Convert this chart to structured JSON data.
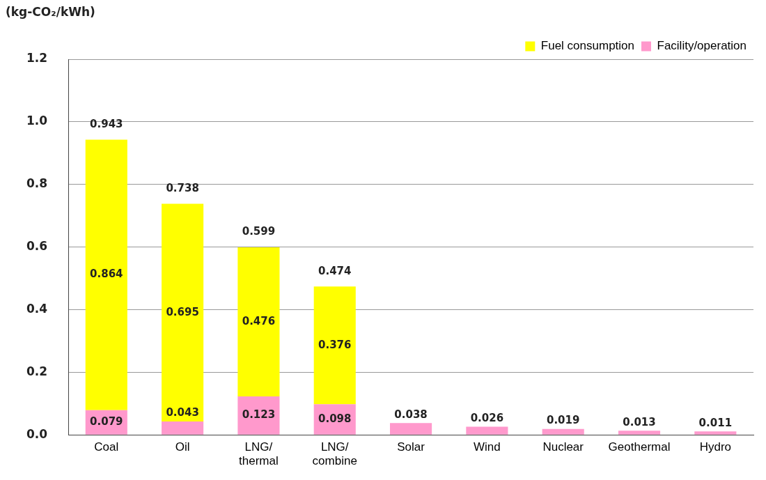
{
  "chart_data": {
    "type": "bar",
    "ylabel": "(kg-CO₂/kWh)",
    "categories": [
      "Coal",
      "Oil",
      "LNG/thermal",
      "LNG/combine",
      "Solar",
      "Wind",
      "Nuclear",
      "Geothermal",
      "Hydro"
    ],
    "stacked": true,
    "series": [
      {
        "name": "Facility/operation",
        "color": "#ff99cc",
        "values": [
          0.079,
          0.043,
          0.123,
          0.098,
          0.038,
          0.026,
          0.019,
          0.013,
          0.011
        ]
      },
      {
        "name": "Fuel consumption",
        "color": "#ffff00",
        "values": [
          0.864,
          0.695,
          0.476,
          0.376,
          null,
          null,
          null,
          null,
          null
        ]
      }
    ],
    "totals": [
      "0.943",
      "0.738",
      "0.599",
      "0.474",
      null,
      null,
      null,
      null,
      null
    ],
    "data_labels": true,
    "ylim": [
      0,
      1.2
    ],
    "yticks": [
      {
        "value": 0,
        "label": "0.0"
      },
      0.2,
      0.4,
      0.6,
      0.8,
      {
        "value": 1,
        "label": "1.0"
      },
      1.2
    ],
    "grid": "y",
    "legend": "top right"
  }
}
